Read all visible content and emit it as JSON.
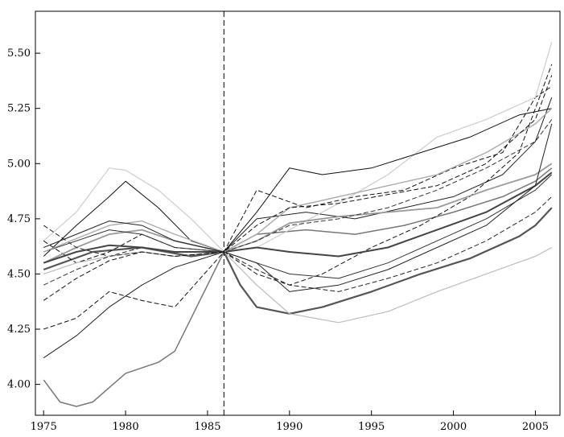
{
  "chart_data": {
    "type": "line",
    "title": "",
    "xlabel": "",
    "ylabel": "",
    "xlim": [
      1974.5,
      2006.5
    ],
    "ylim": [
      3.86,
      5.69
    ],
    "grid": false,
    "legend": "none",
    "x_ticks": [
      1975,
      1980,
      1985,
      1990,
      1995,
      2000,
      2005
    ],
    "x_tick_labels": [
      "1975",
      "1980",
      "1985",
      "1990",
      "1995",
      "2000",
      "2005"
    ],
    "y_ticks": [
      4.0,
      4.25,
      4.5,
      4.75,
      5.0,
      5.25,
      5.5
    ],
    "y_tick_labels": [
      "4.00",
      "4.25",
      "4.50",
      "4.75",
      "5.00",
      "5.25",
      "5.50"
    ],
    "reference_line": {
      "orientation": "vertical",
      "x": 1986,
      "style": "dashed"
    },
    "series": [
      {
        "style": "solid",
        "color": "#222222",
        "width": 1,
        "x": [
          1975,
          1977,
          1979,
          1981,
          1983,
          1986,
          1988,
          1991,
          1994,
          1997,
          2000,
          2003,
          2005,
          2006
        ],
        "values": [
          4.12,
          4.22,
          4.35,
          4.45,
          4.53,
          4.6,
          4.75,
          4.78,
          4.75,
          4.8,
          4.85,
          4.95,
          5.1,
          5.3
        ]
      },
      {
        "style": "solid",
        "color": "#777777",
        "width": 1.5,
        "x": [
          1975,
          1976,
          1977,
          1978,
          1980,
          1982,
          1983,
          1984,
          1986,
          1988,
          1991,
          1994,
          1997,
          2000,
          2003,
          2005,
          2006
        ],
        "values": [
          4.02,
          3.92,
          3.9,
          3.92,
          4.05,
          4.1,
          4.15,
          4.3,
          4.6,
          4.68,
          4.7,
          4.68,
          4.72,
          4.78,
          4.85,
          4.92,
          4.98
        ]
      },
      {
        "style": "dashed",
        "color": "#111111",
        "width": 1,
        "x": [
          1975,
          1977,
          1979,
          1981,
          1983,
          1986,
          1988,
          1991,
          1994,
          1997,
          2000,
          2003,
          2005,
          2006
        ],
        "values": [
          4.25,
          4.3,
          4.42,
          4.38,
          4.35,
          4.6,
          4.88,
          4.8,
          4.85,
          4.88,
          4.98,
          5.05,
          5.3,
          5.35
        ]
      },
      {
        "style": "solid",
        "color": "#555555",
        "width": 2.2,
        "x": [
          1975,
          1978,
          1981,
          1984,
          1986,
          1987,
          1988,
          1990,
          1992,
          1995,
          1998,
          2001,
          2004,
          2005,
          2006
        ],
        "values": [
          4.52,
          4.6,
          4.62,
          4.58,
          4.6,
          4.45,
          4.35,
          4.32,
          4.35,
          4.42,
          4.5,
          4.57,
          4.67,
          4.72,
          4.8
        ]
      },
      {
        "style": "solid",
        "color": "#cccccc",
        "width": 1.2,
        "x": [
          1975,
          1977,
          1979,
          1980,
          1982,
          1984,
          1986,
          1988,
          1990,
          1993,
          1996,
          1999,
          2002,
          2005,
          2006
        ],
        "values": [
          4.65,
          4.78,
          4.98,
          4.97,
          4.88,
          4.75,
          4.6,
          4.62,
          4.7,
          4.82,
          4.95,
          5.12,
          5.2,
          5.3,
          5.55
        ]
      },
      {
        "style": "solid",
        "color": "#111111",
        "width": 1,
        "x": [
          1975,
          1977,
          1979,
          1980,
          1982,
          1984,
          1986,
          1988,
          1990,
          1992,
          1995,
          1998,
          2001,
          2004,
          2006
        ],
        "values": [
          4.58,
          4.72,
          4.85,
          4.92,
          4.8,
          4.65,
          4.6,
          4.78,
          4.98,
          4.95,
          4.98,
          5.05,
          5.12,
          5.22,
          5.25
        ]
      },
      {
        "style": "dashed",
        "color": "#111111",
        "width": 1,
        "x": [
          1975,
          1977,
          1979,
          1981,
          1983,
          1986,
          1988,
          1990,
          1992,
          1995,
          1998,
          2001,
          2004,
          2006
        ],
        "values": [
          4.65,
          4.55,
          4.6,
          4.68,
          4.62,
          4.6,
          4.5,
          4.45,
          4.5,
          4.62,
          4.72,
          4.85,
          5.05,
          5.45
        ]
      },
      {
        "style": "solid",
        "color": "#999999",
        "width": 1.8,
        "x": [
          1975,
          1977,
          1979,
          1981,
          1983,
          1986,
          1988,
          1990,
          1993,
          1996,
          1999,
          2002,
          2005,
          2006
        ],
        "values": [
          4.55,
          4.62,
          4.68,
          4.7,
          4.65,
          4.6,
          4.65,
          4.73,
          4.76,
          4.78,
          4.8,
          4.88,
          4.95,
          5.0
        ]
      },
      {
        "style": "dashed",
        "color": "#222222",
        "width": 1,
        "x": [
          1975,
          1977,
          1979,
          1981,
          1983,
          1986,
          1988,
          1990,
          1993,
          1996,
          1999,
          2002,
          2005,
          2006
        ],
        "values": [
          4.72,
          4.62,
          4.58,
          4.62,
          4.6,
          4.6,
          4.52,
          4.45,
          4.42,
          4.48,
          4.55,
          4.65,
          4.78,
          4.85
        ]
      },
      {
        "style": "solid",
        "color": "#bbbbbb",
        "width": 1.2,
        "x": [
          1975,
          1977,
          1979,
          1981,
          1983,
          1986,
          1988,
          1990,
          1993,
          1996,
          1999,
          2002,
          2005,
          2006
        ],
        "values": [
          4.5,
          4.55,
          4.58,
          4.6,
          4.58,
          4.6,
          4.45,
          4.32,
          4.28,
          4.33,
          4.42,
          4.5,
          4.58,
          4.62
        ]
      },
      {
        "style": "solid",
        "color": "#333333",
        "width": 1,
        "x": [
          1975,
          1977,
          1979,
          1981,
          1983,
          1986,
          1988,
          1990,
          1993,
          1996,
          1999,
          2002,
          2005,
          2006
        ],
        "values": [
          4.6,
          4.65,
          4.7,
          4.68,
          4.62,
          4.6,
          4.55,
          4.5,
          4.48,
          4.55,
          4.65,
          4.75,
          4.88,
          4.95
        ]
      },
      {
        "style": "dashed",
        "color": "#333333",
        "width": 1,
        "x": [
          1975,
          1977,
          1979,
          1981,
          1983,
          1986,
          1988,
          1990,
          1993,
          1996,
          1999,
          2002,
          2005,
          2006
        ],
        "values": [
          4.45,
          4.52,
          4.58,
          4.6,
          4.58,
          4.6,
          4.65,
          4.72,
          4.75,
          4.8,
          4.88,
          4.98,
          5.1,
          5.2
        ]
      },
      {
        "style": "solid",
        "color": "#444444",
        "width": 2,
        "x": [
          1975,
          1977,
          1979,
          1981,
          1983,
          1986,
          1988,
          1990,
          1993,
          1996,
          1999,
          2002,
          2005,
          2006
        ],
        "values": [
          4.55,
          4.6,
          4.63,
          4.62,
          4.6,
          4.6,
          4.62,
          4.6,
          4.58,
          4.62,
          4.7,
          4.78,
          4.9,
          4.96
        ]
      },
      {
        "style": "solid",
        "color": "#aaaaaa",
        "width": 1.4,
        "x": [
          1975,
          1977,
          1979,
          1981,
          1983,
          1986,
          1988,
          1990,
          1993,
          1996,
          1999,
          2002,
          2005,
          2006
        ],
        "values": [
          4.6,
          4.66,
          4.72,
          4.74,
          4.68,
          4.6,
          4.68,
          4.8,
          4.85,
          4.9,
          4.95,
          5.05,
          5.18,
          5.25
        ]
      },
      {
        "style": "dashed",
        "color": "#111111",
        "width": 1,
        "x": [
          1975,
          1977,
          1979,
          1981,
          1983,
          1986,
          1988,
          1990,
          1993,
          1996,
          1999,
          2002,
          2005,
          2006
        ],
        "values": [
          4.38,
          4.48,
          4.56,
          4.6,
          4.58,
          4.6,
          4.72,
          4.8,
          4.82,
          4.86,
          4.9,
          5.0,
          5.2,
          5.4
        ]
      },
      {
        "style": "solid",
        "color": "#222222",
        "width": 1,
        "x": [
          1975,
          1977,
          1979,
          1981,
          1983,
          1986,
          1988,
          1990,
          1993,
          1996,
          1999,
          2002,
          2005,
          2006
        ],
        "values": [
          4.62,
          4.68,
          4.74,
          4.72,
          4.65,
          4.6,
          4.55,
          4.42,
          4.45,
          4.52,
          4.62,
          4.72,
          4.9,
          5.18
        ]
      }
    ]
  }
}
